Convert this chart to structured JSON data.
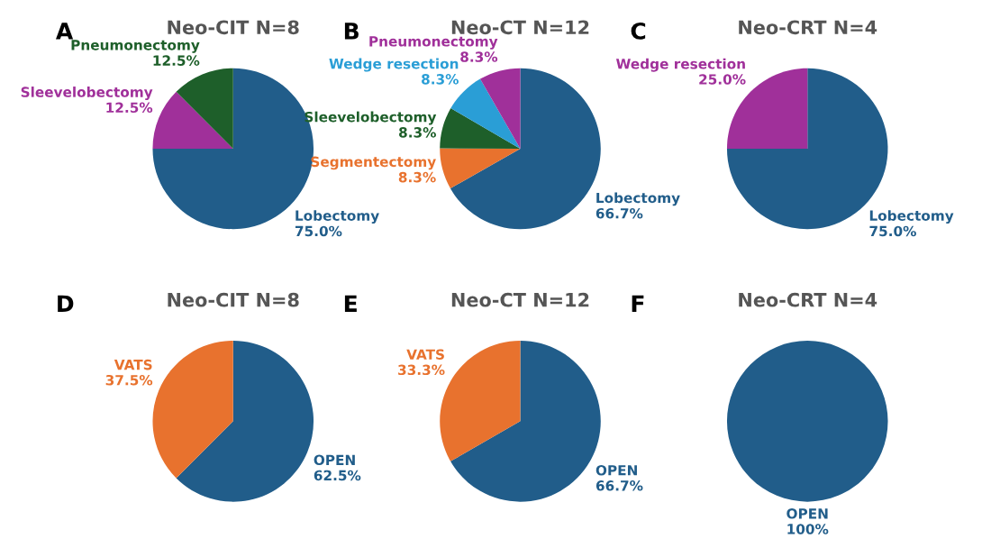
{
  "chart_data": [
    {
      "type": "pie",
      "title": "Neo-CIT N=8",
      "annotations": [
        "A"
      ],
      "categories": [
        "Lobectomy",
        "Sleevelobectomy",
        "Pneumonectomy"
      ],
      "values": [
        75.0,
        12.5,
        12.5
      ],
      "value_labels": [
        "75.0%",
        "12.5%",
        "12.5%"
      ],
      "colors": [
        "#215d8a",
        "#a0309a",
        "#1e5f2a"
      ]
    },
    {
      "type": "pie",
      "title": "Neo-CT N=12",
      "annotations": [
        "B"
      ],
      "categories": [
        "Lobectomy",
        "Segmentectomy",
        "Sleevelobectomy",
        "Wedge resection",
        "Pneumonectomy"
      ],
      "values": [
        66.7,
        8.3,
        8.3,
        8.3,
        8.3
      ],
      "value_labels": [
        "66.7%",
        "8.3%",
        "8.3%",
        "8.3%",
        "8.3%"
      ],
      "colors": [
        "#215d8a",
        "#e8722e",
        "#1e5f2a",
        "#2a9ed6",
        "#a0309a"
      ]
    },
    {
      "type": "pie",
      "title": "Neo-CRT N=4",
      "annotations": [
        "C"
      ],
      "categories": [
        "Lobectomy",
        "Wedge resection"
      ],
      "values": [
        75.0,
        25.0
      ],
      "value_labels": [
        "75.0%",
        "25.0%"
      ],
      "colors": [
        "#215d8a",
        "#a0309a"
      ]
    },
    {
      "type": "pie",
      "title": "Neo-CIT N=8",
      "annotations": [
        "D"
      ],
      "categories": [
        "OPEN",
        "VATS"
      ],
      "values": [
        62.5,
        37.5
      ],
      "value_labels": [
        "62.5%",
        "37.5%"
      ],
      "colors": [
        "#215d8a",
        "#e8722e"
      ]
    },
    {
      "type": "pie",
      "title": "Neo-CT N=12",
      "annotations": [
        "E"
      ],
      "categories": [
        "OPEN",
        "VATS"
      ],
      "values": [
        66.7,
        33.3
      ],
      "value_labels": [
        "66.7%",
        "33.3%"
      ],
      "colors": [
        "#215d8a",
        "#e8722e"
      ]
    },
    {
      "type": "pie",
      "title": "Neo-CRT N=4",
      "annotations": [
        "F"
      ],
      "categories": [
        "OPEN"
      ],
      "values": [
        100
      ],
      "value_labels": [
        "100%"
      ],
      "colors": [
        "#215d8a"
      ]
    }
  ]
}
